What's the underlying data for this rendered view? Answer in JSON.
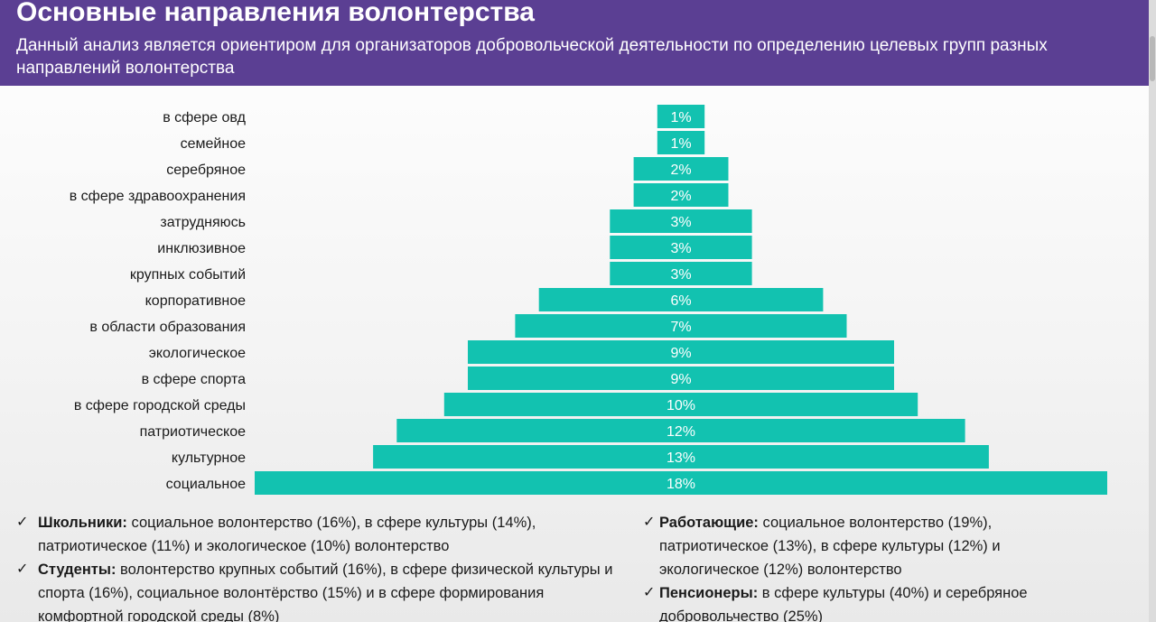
{
  "header": {
    "title": "Основные направления волонтерства",
    "subtitle": "Данный анализ является ориентиром для организаторов добровольческой деятельности по определению целевых групп разных направлений волонтерства"
  },
  "colors": {
    "header_bg": "#5b3f93",
    "bar": "#12c2b0"
  },
  "chart_data": {
    "type": "bar",
    "orientation": "horizontal-centered",
    "categories": [
      "в сфере овд",
      "семейное",
      "серебряное",
      "в сфере здравоохранения",
      "затрудняюсь",
      "инклюзивное",
      "крупных событий",
      "корпоративное",
      "в области образования",
      "экологическое",
      "в сфере спорта",
      "в сфере городской среды",
      "патриотическое",
      "культурное",
      "социальное"
    ],
    "values": [
      1,
      1,
      2,
      2,
      3,
      3,
      3,
      6,
      7,
      9,
      9,
      10,
      12,
      13,
      18
    ],
    "value_labels": [
      "1%",
      "1%",
      "2%",
      "2%",
      "3%",
      "3%",
      "3%",
      "6%",
      "7%",
      "9%",
      "9%",
      "10%",
      "12%",
      "13%",
      "18%"
    ],
    "unit": "%"
  },
  "notes": {
    "left": [
      {
        "title": "Школьники:",
        "text": " социальное волонтерство (16%), в сфере культуры (14%), патриотическое (11%) и экологическое (10%) волонтерство"
      },
      {
        "title": "Студенты:",
        "text": " волонтерство крупных событий (16%), в сфере физической культуры и спорта (16%), социальное волонтёрство (15%) и в сфере формирования комфортной городской среды (8%)"
      }
    ],
    "right": [
      {
        "title": "Работающие:",
        "text": " социальное волонтерство (19%), патриотическое (13%), в сфере культуры (12%)  и экологическое (12%) волонтерство"
      },
      {
        "title": "Пенсионеры:",
        "text": " в сфере культуры (40%) и серебряное добровольчество (25%)"
      }
    ],
    "check_symbol": "✓"
  }
}
